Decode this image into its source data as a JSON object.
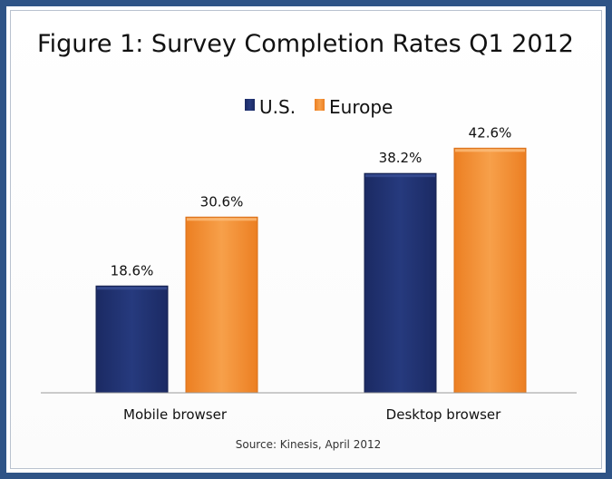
{
  "chart_data": {
    "type": "bar",
    "title": "Figure 1: Survey Completion Rates Q1 2012",
    "categories": [
      "Mobile browser",
      "Desktop browser"
    ],
    "series": [
      {
        "name": "U.S.",
        "values": [
          18.6,
          38.2
        ],
        "color": "#1f2f6b",
        "labels": [
          "18.6%",
          "38.2%"
        ]
      },
      {
        "name": "Europe",
        "values": [
          30.6,
          42.6
        ],
        "color": "#f28c2c",
        "labels": [
          "30.6%",
          "42.6%"
        ]
      }
    ],
    "xlabel": "",
    "ylabel": "",
    "ylim": [
      0,
      50
    ],
    "grid": false,
    "legend": "top-center",
    "source": "Source: Kinesis, April 2012"
  }
}
